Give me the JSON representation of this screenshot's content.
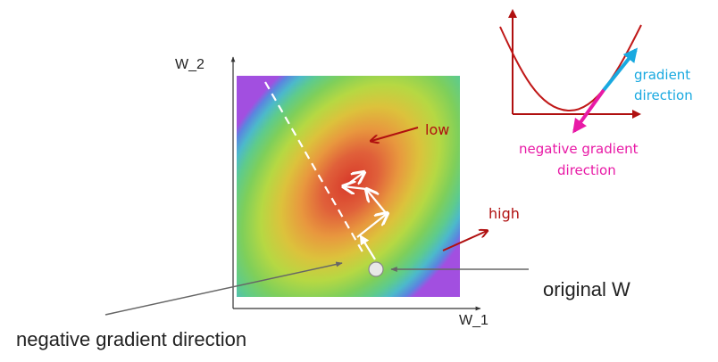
{
  "main_plot": {
    "x_axis_label": "W_1",
    "y_axis_label": "W_2",
    "low_label": "low",
    "high_label": "high",
    "original_w_label": "original W",
    "negative_gradient_label": "negative gradient direction"
  },
  "inset": {
    "gradient_label_line1": "gradient",
    "gradient_label_line2": "direction",
    "negative_gradient_label_line1": "negative gradient",
    "negative_gradient_label_line2": "direction"
  },
  "colors": {
    "axis": "#333333",
    "dark_red": "#b01010",
    "curve": "#c01818",
    "gradient_arrow": "#19a9e0",
    "negative_arrow": "#e81aa6",
    "pointer_gray": "#666666"
  }
}
